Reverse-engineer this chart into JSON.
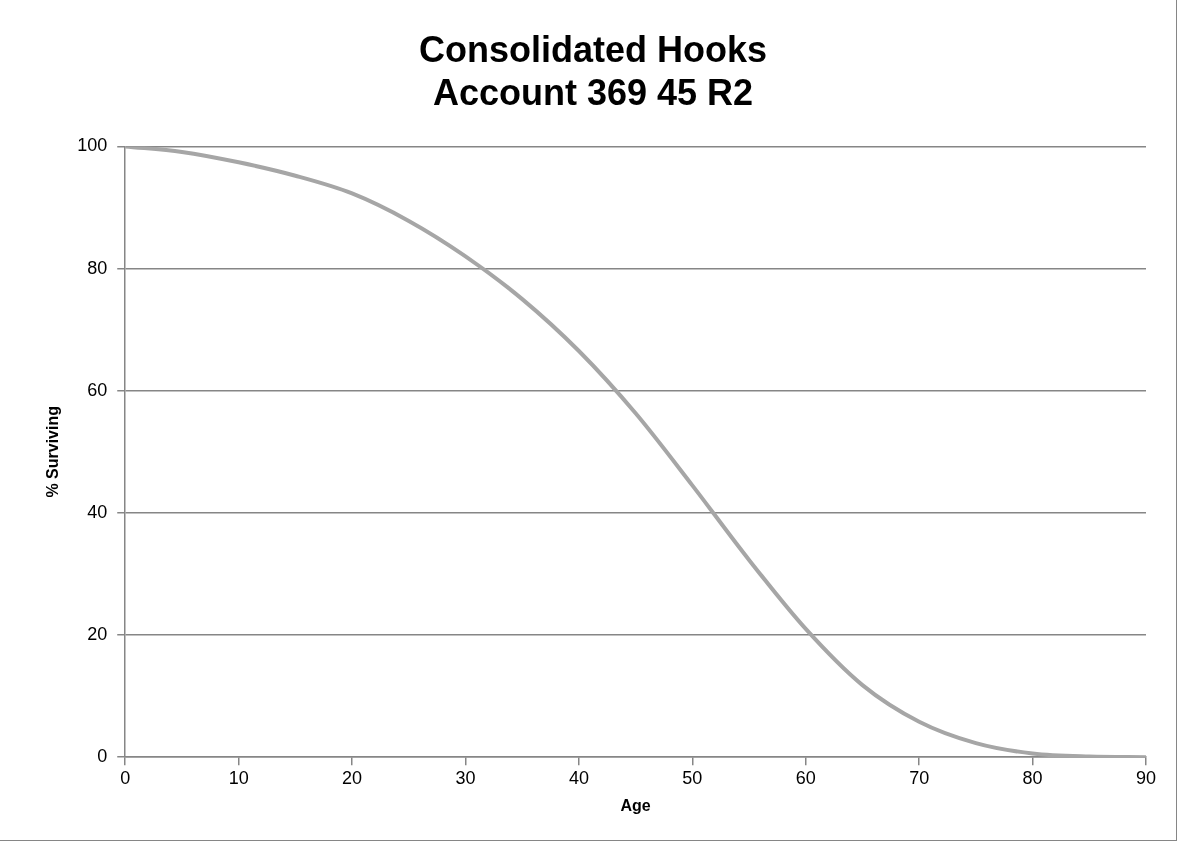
{
  "chart_data": {
    "type": "line",
    "title": "Consolidated Hooks\nAccount 369 45 R2",
    "xlabel": "Age",
    "ylabel": "% Surviving",
    "x": [
      0,
      5,
      10,
      15,
      20,
      25,
      30,
      35,
      40,
      45,
      50,
      55,
      60,
      65,
      70,
      75,
      80,
      85,
      90
    ],
    "series": [
      {
        "color": "#a6a6a6",
        "values": [
          100,
          99.1,
          97.4,
          95.2,
          92.3,
          87.8,
          82,
          75,
          66.5,
          56.3,
          44.5,
          32.3,
          21,
          11.8,
          5.8,
          2.3,
          0.6,
          0.1,
          0
        ]
      }
    ],
    "xlim": [
      0,
      90
    ],
    "xticks": [
      0,
      10,
      20,
      30,
      40,
      50,
      60,
      70,
      80,
      90
    ],
    "ylim": [
      0,
      100
    ],
    "yticks": [
      0,
      20,
      40,
      60,
      80,
      100
    ],
    "grid": "y",
    "legend": false,
    "marker": "none",
    "line_style": "solid"
  }
}
